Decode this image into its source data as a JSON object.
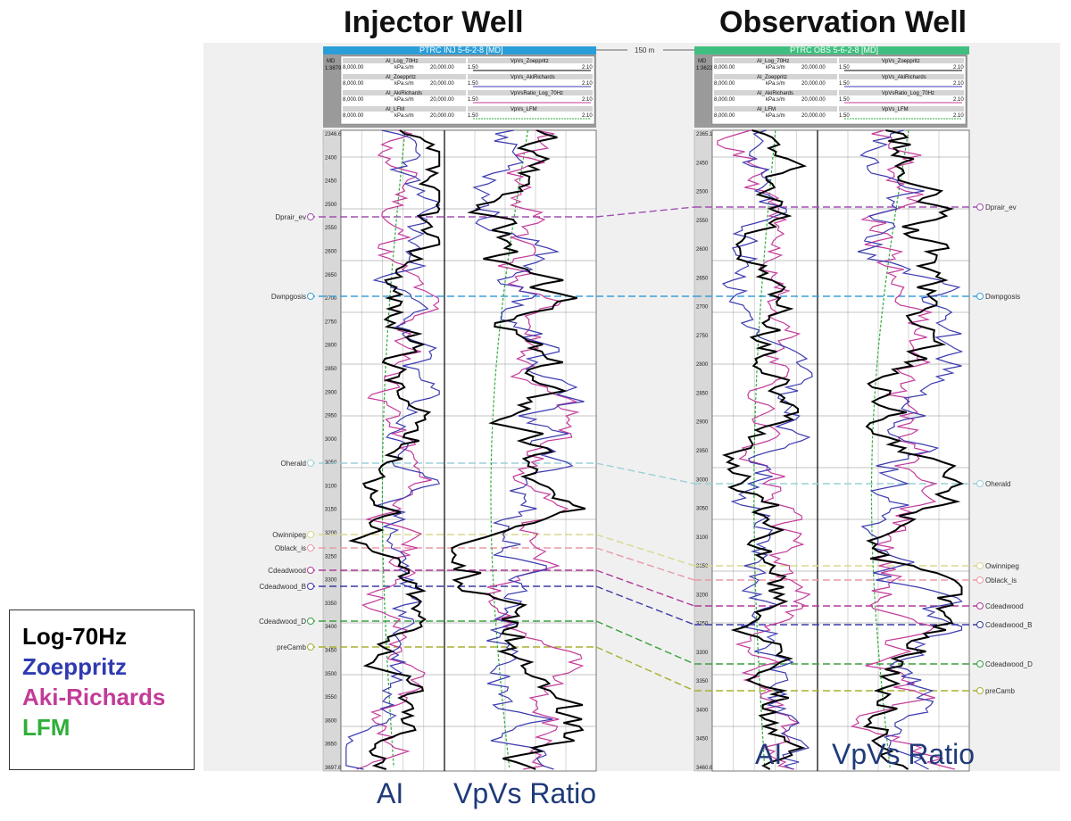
{
  "titles": {
    "injector": "Injector Well",
    "observation": "Observation Well"
  },
  "headers": {
    "injector": "PTRC INJ 5-6-2-8 [MD]",
    "observation": "PTRC OBS 5-6-2-8 [MD]",
    "spacing": "150 m",
    "md_label": "MD",
    "scale_inj": "1:3879",
    "scale_obs": "1:3622",
    "rows": [
      {
        "left": "AI_Log_70Hz",
        "right": "VpVs_Zoeppritz"
      },
      {
        "left": "AI_Zoeppritz",
        "right": "VpVs_AkiRichards"
      },
      {
        "left": "AI_AkiRichards",
        "right": "VpVsRatio_Log_70Hz"
      },
      {
        "left": "AI_LFM",
        "right": "VpVs_LFM"
      }
    ],
    "unit": "kPa.s/m",
    "min_left": "8,000.00",
    "max_left": "20,000.00",
    "min_right": "1.50",
    "max_right": "2.10"
  },
  "colors": {
    "log": "#000000",
    "zoeppritz": "#3b3bb0",
    "aki": "#c43a9a",
    "lfm": "#2fae3a",
    "injector_header": "#2a9ed8",
    "observation_header": "#3fbf7f"
  },
  "depth_ticks_inj": [
    "2346.6",
    "2400",
    "2450",
    "2500",
    "2550",
    "2600",
    "2650",
    "2700",
    "2750",
    "2800",
    "2850",
    "2900",
    "2950",
    "3000",
    "3050",
    "3100",
    "3150",
    "3200",
    "3250",
    "3300",
    "3350",
    "3400",
    "3450",
    "3500",
    "3550",
    "3600",
    "3650",
    "3697.6"
  ],
  "depth_ticks_obs": [
    "2365.13",
    "2450",
    "2500",
    "2550",
    "2600",
    "2650",
    "2700",
    "2750",
    "2800",
    "2850",
    "2900",
    "2950",
    "3000",
    "3050",
    "3100",
    "3150",
    "3200",
    "3250",
    "3300",
    "3350",
    "3400",
    "3450",
    "3460.6"
  ],
  "formations": [
    {
      "name": "Dprair_ev",
      "color": "#a050b0",
      "yi": 243,
      "yo": 232
    },
    {
      "name": "Dwnpgosis",
      "color": "#3aa0d8",
      "yi": 332,
      "yo": 332
    },
    {
      "name": "Oherald",
      "color": "#9ad0d8",
      "yi": 519,
      "yo": 542
    },
    {
      "name": "Owinnipeg",
      "color": "#d8d890",
      "yi": 599,
      "yo": 634
    },
    {
      "name": "Oblack_is",
      "color": "#e89aa8",
      "yi": 614,
      "yo": 650
    },
    {
      "name": "Cdeadwood",
      "color": "#b03a9a",
      "yi": 639,
      "yo": 679
    },
    {
      "name": "Cdeadwood_B",
      "color": "#3a3aa8",
      "yi": 657,
      "yo": 700
    },
    {
      "name": "Cdeadwood_D",
      "color": "#3aa040",
      "yi": 696,
      "yo": 744
    },
    {
      "name": "preCamb",
      "color": "#a8b030",
      "yi": 725,
      "yo": 774
    }
  ],
  "columns": {
    "ai": "AI",
    "vpvs": "VpVs Ratio"
  },
  "legend": [
    {
      "label": "Log-70Hz",
      "color": "#000000"
    },
    {
      "label": "Zoeppritz",
      "color": "#2f3ab0"
    },
    {
      "label": "Aki-Richards",
      "color": "#c23b98"
    },
    {
      "label": "LFM",
      "color": "#2fae3a"
    }
  ]
}
